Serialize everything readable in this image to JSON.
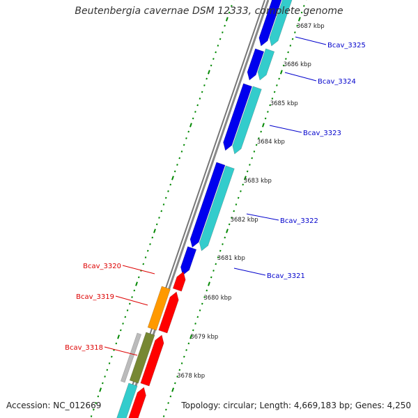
{
  "title": "Beutenbergia cavernae DSM 12333, complete genome",
  "accession_text": "Accession: NC_012669",
  "topology_text": "Topology: circular; Length: 4,669,183 bp; Genes: 4,250",
  "colors": {
    "forward_cds": "#0000ee",
    "forward_gene": "#33cccc",
    "reverse_cds": "#ff0000",
    "reverse_gene_orange": "#ff9900",
    "reverse_gene_olive": "#778833",
    "reverse_gene_grey": "#bbbbbb",
    "backbone": "#888888",
    "tick": "#008800",
    "forward_label": "#0000cc",
    "reverse_label": "#dd0000"
  },
  "scale_ticks": [
    "3687 kbp",
    "3686 kbp",
    "3685 kbp",
    "3684 kbp",
    "3683 kbp",
    "3682 kbp",
    "3681 kbp",
    "3680 kbp",
    "3679 kbp",
    "3678 kbp"
  ],
  "forward_genes": [
    "Bcav_3325",
    "Bcav_3324",
    "Bcav_3323",
    "Bcav_3322",
    "Bcav_3321"
  ],
  "reverse_genes": [
    "Bcav_3320",
    "Bcav_3319",
    "Bcav_3318"
  ]
}
